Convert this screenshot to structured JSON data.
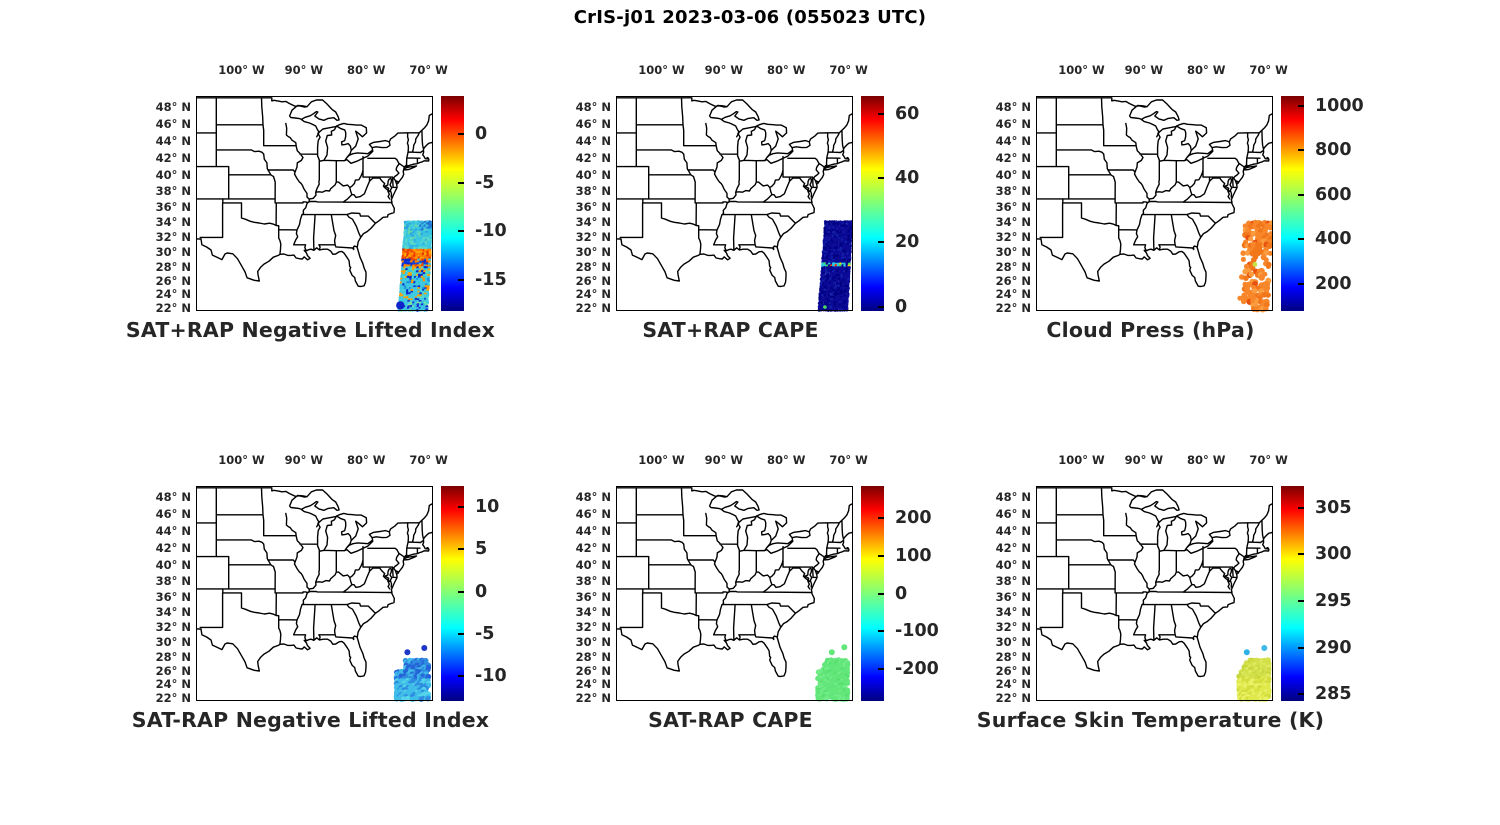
{
  "figure": {
    "title": "CrIS-j01 2023-03-06 (055023 UTC)",
    "background": "#ffffff"
  },
  "map_axes": {
    "lon_tick_labels": [
      "100° W",
      "90° W",
      "80° W",
      "70° W"
    ],
    "lon_tick_values": [
      -100,
      -90,
      -80,
      -70
    ],
    "lat_tick_labels": [
      "48° N",
      "46° N",
      "44° N",
      "42° N",
      "40° N",
      "38° N",
      "36° N",
      "34° N",
      "32° N",
      "30° N",
      "28° N",
      "26° N",
      "24° N",
      "22° N"
    ],
    "lat_tick_values": [
      48,
      46,
      44,
      42,
      40,
      38,
      36,
      34,
      32,
      30,
      28,
      26,
      24,
      22
    ],
    "map_extent": {
      "lon": [
        -107.3,
        -69.3
      ],
      "lat": [
        21.5,
        49.2
      ]
    }
  },
  "colormap": {
    "name": "jet",
    "stops": [
      [
        "0%",
        "#000080"
      ],
      [
        "11%",
        "#0000ff"
      ],
      [
        "34%",
        "#00ffff"
      ],
      [
        "50%",
        "#7dff7a"
      ],
      [
        "66%",
        "#ffff00"
      ],
      [
        "89%",
        "#ff0000"
      ],
      [
        "100%",
        "#7a0000"
      ]
    ]
  },
  "chart_data": [
    {
      "id": "sat-plus-rap-negative-lifted-index",
      "title": "SAT+RAP Negative Lifted Index",
      "type": "scatter",
      "colorbar": {
        "labels": [
          "0",
          "-5",
          "-10",
          "-15"
        ],
        "values": [
          0,
          -5,
          -10,
          -15
        ],
        "vmin": -18.2,
        "vmax": 3.9
      },
      "scatter": {
        "mode": "swath-bands",
        "dot_radius": 1.5,
        "lat_range": [
          21.6,
          34.05
        ],
        "bands": [
          {
            "lat_min": 33.0,
            "lat_max": 34.4,
            "lon_min": -71.3,
            "colors": [
              "#2b90dd",
              "#3fc0e0",
              "#1f6fd0"
            ],
            "weights": [
              0.45,
              0.35,
              0.2
            ]
          },
          {
            "lat_min": 31.9,
            "lat_max": 34.4,
            "colors": [
              "#38c4e0",
              "#55d2cf",
              "#63d8a8",
              "#2aa0e0"
            ],
            "weights": [
              0.5,
              0.2,
              0.15,
              0.15
            ]
          },
          {
            "lat_min": 30.4,
            "lat_max": 31.9,
            "colors": [
              "#3cc8e0",
              "#58d8c8",
              "#2fb4e4"
            ],
            "weights": [
              0.6,
              0.25,
              0.15
            ]
          },
          {
            "lat_min": 29.0,
            "lat_max": 30.4,
            "colors": [
              "#ff7a00",
              "#ee3c00",
              "#ffa500",
              "#d42800"
            ],
            "weights": [
              0.4,
              0.3,
              0.2,
              0.1
            ]
          },
          {
            "lat_min": 28.0,
            "lat_max": 29.0,
            "colors": [
              "#0a2ad0",
              "#ff8800",
              "#1240d8",
              "#e84800",
              "#35c4e0"
            ],
            "weights": [
              0.3,
              0.25,
              0.2,
              0.15,
              0.1
            ]
          },
          {
            "lat_min": 26.4,
            "lat_max": 28.0,
            "colors": [
              "#38c8e0",
              "#ffa000",
              "#0a2ad0",
              "#5adcc0"
            ],
            "weights": [
              0.45,
              0.25,
              0.15,
              0.15
            ]
          },
          {
            "lat_min": 24.6,
            "lat_max": 26.4,
            "colors": [
              "#3cc8e0",
              "#ff9800",
              "#2090dd",
              "#0a2ad0"
            ],
            "weights": [
              0.5,
              0.2,
              0.2,
              0.1
            ]
          },
          {
            "lat_min": 21.9,
            "lat_max": 22.9,
            "lon_max": -74.2,
            "colors": [
              "#1526cc",
              "#3cc8e0"
            ],
            "weights": [
              0.55,
              0.45
            ]
          },
          {
            "lat_min": 23.0,
            "lat_max": 24.6,
            "colors": [
              "#40cce0",
              "#0a2ad0",
              "#ffa000",
              "#52d8cc"
            ],
            "weights": [
              0.55,
              0.15,
              0.15,
              0.15
            ]
          },
          {
            "lat_min": 21.3,
            "lat_max": 23.0,
            "colors": [
              "#3ec9e2",
              "#1b2fd0",
              "#7ae89c",
              "#2fb8e8"
            ],
            "weights": [
              0.5,
              0.2,
              0.15,
              0.15
            ]
          }
        ],
        "extra_dots": [
          {
            "lon": -74.55,
            "lat": 22.35,
            "r": 4.2,
            "color": "#1023c8"
          }
        ]
      }
    },
    {
      "id": "sat-plus-rap-cape",
      "title": "SAT+RAP CAPE",
      "type": "scatter",
      "colorbar": {
        "labels": [
          "60",
          "40",
          "20",
          "0"
        ],
        "values": [
          60,
          40,
          20,
          0
        ],
        "vmin": -1.4,
        "vmax": 65.6
      },
      "scatter": {
        "mode": "swath-bands",
        "dot_radius": 1.5,
        "lat_range": [
          21.6,
          34.05
        ],
        "bands": [
          {
            "lat_min": 28.05,
            "lat_max": 28.45,
            "colors": [
              "#2cc8e0",
              "#49da62",
              "#ffd400",
              "#ff2800",
              "#0a0a96"
            ],
            "weights": [
              0.35,
              0.3,
              0.1,
              0.05,
              0.2
            ]
          },
          {
            "lat_min": 21.3,
            "lat_max": 34.4,
            "colors": [
              "#0a0a96",
              "#000082",
              "#131ea8"
            ],
            "weights": [
              0.6,
              0.25,
              0.15
            ]
          }
        ],
        "extra_dots": [
          {
            "lon": -73.8,
            "lat": 22.1,
            "r": 1.8,
            "color": "#49da62"
          }
        ]
      }
    },
    {
      "id": "cloud-press-hpa",
      "title": "Cloud Press (hPa)",
      "type": "scatter",
      "colorbar": {
        "labels": [
          "1000",
          "800",
          "600",
          "400",
          "200"
        ],
        "values": [
          1000,
          800,
          600,
          400,
          200
        ],
        "vmin": 78,
        "vmax": 1044
      },
      "scatter": {
        "mode": "swath-dots",
        "dot_radius": 2.9,
        "lat_range": [
          21.9,
          33.9
        ],
        "colors": [
          "#f8872b",
          "#f2761a",
          "#fb9d3f",
          "#e8500f"
        ],
        "weights": [
          0.45,
          0.3,
          0.17,
          0.08
        ],
        "keep": [
          {
            "lat_min": 29.5,
            "p": 0.8
          },
          {
            "lat_min": 25.5,
            "p": 0.5
          },
          {
            "lat_min": 0,
            "p": 0.62
          }
        ],
        "extra_dots": [
          {
            "lon": -72.2,
            "lat": 28.3,
            "r": 2.4,
            "color": "#c8e24a"
          }
        ]
      }
    },
    {
      "id": "sat-minus-rap-negative-lifted-index",
      "title": "SAT-RAP Negative Lifted Index",
      "type": "scatter",
      "colorbar": {
        "labels": [
          "10",
          "5",
          "0",
          "-5",
          "-10"
        ],
        "values": [
          10,
          5,
          0,
          -5,
          -10
        ],
        "vmin": -12.9,
        "vmax": 12.5
      },
      "scatter": {
        "mode": "cluster",
        "dot_radius": 2.7,
        "region": {
          "lat_min": 21.7,
          "lat_max": 27.45,
          "lon_min": -75.1,
          "lon_max": -69.95,
          "top_cut": {
            "lat": 25.9,
            "lon0": -74.25,
            "slope": 0.35
          },
          "keep": 0.82
        },
        "bands": [
          {
            "lat_min": 24.6,
            "colors": [
              "#2563d8",
              "#2f8ce0",
              "#3fb9e8"
            ],
            "weights": [
              0.45,
              0.3,
              0.25
            ]
          },
          {
            "lat_min": 0,
            "colors": [
              "#3fbde8",
              "#2f8ce0",
              "#55d4ea"
            ],
            "weights": [
              0.5,
              0.3,
              0.2
            ]
          }
        ],
        "outliers": [
          {
            "lon": -73.4,
            "lat": 28.6,
            "color": "#1c36c8"
          },
          {
            "lon": -70.7,
            "lat": 29.2,
            "color": "#1c36c8"
          }
        ]
      }
    },
    {
      "id": "sat-minus-rap-cape",
      "title": "SAT-RAP CAPE",
      "type": "scatter",
      "colorbar": {
        "labels": [
          "200",
          "100",
          "0",
          "-100",
          "-200"
        ],
        "values": [
          200,
          100,
          0,
          -100,
          -200
        ],
        "vmin": -285,
        "vmax": 285
      },
      "scatter": {
        "mode": "cluster",
        "dot_radius": 2.7,
        "region": {
          "lat_min": 21.7,
          "lat_max": 27.45,
          "lon_min": -74.9,
          "lon_max": -69.95,
          "top_cut": {
            "lat": 25.9,
            "lon0": -74.25,
            "slope": 0.35
          },
          "keep": 0.82
        },
        "bands": [
          {
            "lat_min": 0,
            "colors": [
              "#63e67a",
              "#58e070",
              "#72ec88"
            ],
            "weights": [
              0.6,
              0.2,
              0.2
            ]
          }
        ],
        "outliers": [
          {
            "lon": -72.7,
            "lat": 28.6,
            "color": "#63e67a"
          },
          {
            "lon": -70.7,
            "lat": 29.3,
            "color": "#63e67a"
          }
        ]
      }
    },
    {
      "id": "surface-skin-temperature-k",
      "title": "Surface Skin Temperature (K)",
      "type": "scatter",
      "colorbar": {
        "labels": [
          "305",
          "300",
          "295",
          "290",
          "285"
        ],
        "values": [
          305,
          300,
          295,
          290,
          285
        ],
        "vmin": 284.3,
        "vmax": 307.3
      },
      "scatter": {
        "mode": "cluster",
        "dot_radius": 2.7,
        "region": {
          "lat_min": 21.7,
          "lat_max": 27.45,
          "lon_min": -74.7,
          "lon_max": -69.95,
          "top_cut": {
            "lat": 25.9,
            "lon0": -74.1,
            "slope": 0.35
          },
          "keep": 0.82
        },
        "bands": [
          {
            "lat_min": 24.8,
            "colors": [
              "#d3e04a",
              "#c6d63c",
              "#e0ea5e"
            ],
            "weights": [
              0.5,
              0.3,
              0.2
            ]
          },
          {
            "lat_min": 0,
            "colors": [
              "#dfe94c",
              "#d3de3e",
              "#eaf266"
            ],
            "weights": [
              0.5,
              0.3,
              0.2
            ]
          }
        ],
        "outliers": [
          {
            "lon": -73.5,
            "lat": 28.6,
            "color": "#2fb1e8"
          },
          {
            "lon": -70.7,
            "lat": 29.2,
            "color": "#3fb9e8"
          }
        ]
      }
    }
  ]
}
